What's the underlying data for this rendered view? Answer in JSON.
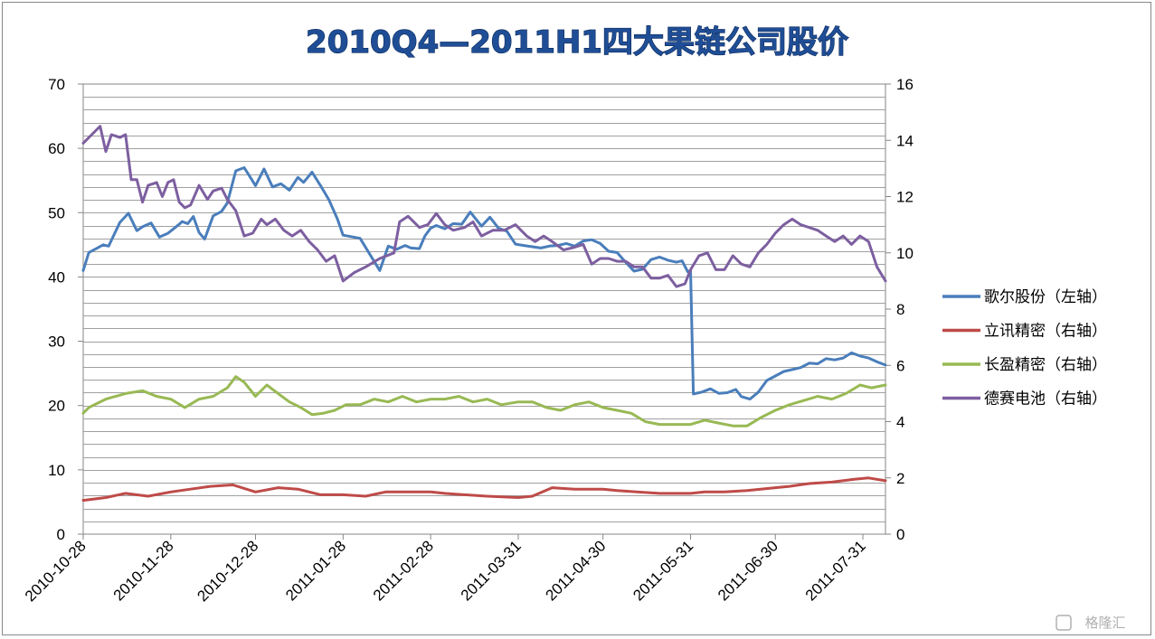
{
  "watermark": "格隆汇",
  "chart_data": {
    "type": "line",
    "title": "2010Q4—2011H1四大果链公司股价",
    "x_tick_labels": [
      "2010-10-28",
      "2010-11-28",
      "2010-12-28",
      "2011-01-28",
      "2011-02-28",
      "2011-03-31",
      "2011-04-30",
      "2011-05-31",
      "2011-06-30",
      "2011-07-31"
    ],
    "x_tick_dates": [
      "2010-10-28",
      "2010-11-28",
      "2010-12-28",
      "2011-01-28",
      "2011-02-28",
      "2011-03-31",
      "2011-04-30",
      "2011-05-31",
      "2011-06-30",
      "2011-07-31"
    ],
    "x_range": [
      "2010-10-28",
      "2011-08-08"
    ],
    "y_left": {
      "lim": [
        0,
        70
      ],
      "ticks": [
        "0",
        "10",
        "20",
        "30",
        "40",
        "50",
        "60",
        "70"
      ]
    },
    "y_right": {
      "lim": [
        0,
        16
      ],
      "ticks": [
        "0",
        "2",
        "4",
        "6",
        "8",
        "10",
        "12",
        "14",
        "16"
      ]
    },
    "grid": true,
    "legend_position": "right",
    "series": [
      {
        "name": "歌尔股份（左轴）",
        "axis": "left",
        "color": "#4a7ebb",
        "x": [
          "2010-10-28",
          "2010-10-30",
          "2010-11-02",
          "2010-11-04",
          "2010-11-06",
          "2010-11-10",
          "2010-11-13",
          "2010-11-16",
          "2010-11-18",
          "2010-11-21",
          "2010-11-24",
          "2010-11-27",
          "2010-12-01",
          "2010-12-02",
          "2010-12-04",
          "2010-12-06",
          "2010-12-08",
          "2010-12-10",
          "2010-12-13",
          "2010-12-16",
          "2010-12-18",
          "2010-12-21",
          "2010-12-24",
          "2010-12-26",
          "2010-12-28",
          "2010-12-31",
          "2011-01-03",
          "2011-01-06",
          "2011-01-09",
          "2011-01-12",
          "2011-01-14",
          "2011-01-17",
          "2011-01-20",
          "2011-01-23",
          "2011-01-26",
          "2011-01-28",
          "2011-02-03",
          "2011-02-10",
          "2011-02-13",
          "2011-02-16",
          "2011-02-19",
          "2011-02-21",
          "2011-02-24",
          "2011-02-26",
          "2011-02-28",
          "2011-03-02",
          "2011-03-05",
          "2011-03-08",
          "2011-03-11",
          "2011-03-14",
          "2011-03-18",
          "2011-03-21",
          "2011-03-24",
          "2011-03-27",
          "2011-03-30",
          "2011-04-02",
          "2011-04-05",
          "2011-04-08",
          "2011-04-11",
          "2011-04-14",
          "2011-04-17",
          "2011-04-20",
          "2011-04-23",
          "2011-04-26",
          "2011-04-29",
          "2011-05-02",
          "2011-05-05",
          "2011-05-08",
          "2011-05-11",
          "2011-05-14",
          "2011-05-17",
          "2011-05-20",
          "2011-05-23",
          "2011-05-26",
          "2011-05-28",
          "2011-05-30",
          "2011-05-31",
          "2011-06-01",
          "2011-06-04",
          "2011-06-07",
          "2011-06-10",
          "2011-06-13",
          "2011-06-16",
          "2011-06-18",
          "2011-06-21",
          "2011-06-24",
          "2011-06-27",
          "2011-06-30",
          "2011-07-03",
          "2011-07-06",
          "2011-07-09",
          "2011-07-12",
          "2011-07-15",
          "2011-07-18",
          "2011-07-21",
          "2011-07-24",
          "2011-07-27",
          "2011-07-30",
          "2011-08-02",
          "2011-08-05",
          "2011-08-08"
        ],
        "y": [
          41,
          43.8,
          44.5,
          45,
          44.8,
          48.5,
          49.9,
          47.2,
          47.8,
          48.4,
          46.2,
          46.8,
          48.2,
          48.6,
          48.3,
          49.4,
          46.9,
          45.9,
          49.5,
          50.2,
          51.5,
          56.5,
          57,
          55.6,
          54.2,
          56.8,
          54,
          54.5,
          53.5,
          55.5,
          54.7,
          56.3,
          54.2,
          52,
          49,
          46.5,
          46,
          41,
          44.8,
          44.3,
          44.9,
          44.5,
          44.4,
          46.4,
          47.6,
          48,
          47.5,
          48.3,
          48.2,
          50.1,
          47.9,
          49.3,
          47.6,
          47.1,
          45.1,
          44.9,
          44.7,
          44.5,
          44.8,
          44.9,
          45.2,
          44.8,
          45.6,
          45.8,
          45.2,
          44,
          43.8,
          42.3,
          40.9,
          41.2,
          42.7,
          43.1,
          42.6,
          42.3,
          42.5,
          40.8,
          41,
          21.8,
          22.1,
          22.6,
          21.9,
          22,
          22.5,
          21.4,
          21,
          22.1,
          23.9,
          24.6,
          25.3,
          25.6,
          25.9,
          26.6,
          26.5,
          27.3,
          27.1,
          27.4,
          28.2,
          27.7,
          27.4,
          26.8,
          26.3
        ]
      },
      {
        "name": "立讯精密（右轴）",
        "axis": "right",
        "color": "#be4b48",
        "x": [
          "2010-10-28",
          "2010-11-05",
          "2010-11-12",
          "2010-11-20",
          "2010-11-28",
          "2010-12-05",
          "2010-12-12",
          "2010-12-20",
          "2010-12-28",
          "2011-01-05",
          "2011-01-12",
          "2011-01-20",
          "2011-01-28",
          "2011-02-05",
          "2011-02-12",
          "2011-02-20",
          "2011-02-28",
          "2011-03-05",
          "2011-03-12",
          "2011-03-20",
          "2011-03-31",
          "2011-04-05",
          "2011-04-12",
          "2011-04-20",
          "2011-04-30",
          "2011-05-05",
          "2011-05-12",
          "2011-05-20",
          "2011-05-31",
          "2011-06-05",
          "2011-06-12",
          "2011-06-20",
          "2011-06-30",
          "2011-07-05",
          "2011-07-12",
          "2011-07-20",
          "2011-07-28",
          "2011-08-02",
          "2011-08-08"
        ],
        "y": [
          1.2,
          1.3,
          1.45,
          1.35,
          1.5,
          1.6,
          1.7,
          1.75,
          1.5,
          1.65,
          1.6,
          1.4,
          1.4,
          1.35,
          1.5,
          1.5,
          1.5,
          1.45,
          1.4,
          1.35,
          1.3,
          1.35,
          1.65,
          1.6,
          1.6,
          1.55,
          1.5,
          1.45,
          1.45,
          1.5,
          1.5,
          1.55,
          1.65,
          1.7,
          1.8,
          1.85,
          1.95,
          2.0,
          1.9
        ]
      },
      {
        "name": "长盈精密（右轴）",
        "axis": "right",
        "color": "#98b954",
        "x": [
          "2010-10-28",
          "2010-10-30",
          "2010-11-05",
          "2010-11-12",
          "2010-11-18",
          "2010-11-23",
          "2010-11-28",
          "2010-12-03",
          "2010-12-08",
          "2010-12-13",
          "2010-12-18",
          "2010-12-21",
          "2010-12-24",
          "2010-12-28",
          "2011-01-01",
          "2011-01-05",
          "2011-01-09",
          "2011-01-13",
          "2011-01-17",
          "2011-01-21",
          "2011-01-25",
          "2011-01-29",
          "2011-02-03",
          "2011-02-08",
          "2011-02-13",
          "2011-02-18",
          "2011-02-23",
          "2011-02-28",
          "2011-03-05",
          "2011-03-10",
          "2011-03-15",
          "2011-03-20",
          "2011-03-25",
          "2011-03-31",
          "2011-04-05",
          "2011-04-10",
          "2011-04-15",
          "2011-04-20",
          "2011-04-25",
          "2011-04-30",
          "2011-05-05",
          "2011-05-10",
          "2011-05-15",
          "2011-05-20",
          "2011-05-25",
          "2011-05-31",
          "2011-06-05",
          "2011-06-10",
          "2011-06-15",
          "2011-06-20",
          "2011-06-25",
          "2011-06-30",
          "2011-07-05",
          "2011-07-10",
          "2011-07-15",
          "2011-07-20",
          "2011-07-25",
          "2011-07-30",
          "2011-08-03",
          "2011-08-08"
        ],
        "y": [
          4.3,
          4.5,
          4.8,
          5.0,
          5.1,
          4.9,
          4.8,
          4.5,
          4.8,
          4.9,
          5.2,
          5.6,
          5.4,
          4.9,
          5.3,
          5.0,
          4.7,
          4.5,
          4.25,
          4.3,
          4.4,
          4.6,
          4.6,
          4.8,
          4.7,
          4.9,
          4.7,
          4.8,
          4.8,
          4.9,
          4.7,
          4.8,
          4.6,
          4.7,
          4.7,
          4.5,
          4.4,
          4.6,
          4.7,
          4.5,
          4.4,
          4.3,
          4.0,
          3.9,
          3.9,
          3.9,
          4.05,
          3.95,
          3.85,
          3.85,
          4.15,
          4.4,
          4.6,
          4.75,
          4.9,
          4.8,
          5.0,
          5.3,
          5.2,
          5.3
        ]
      },
      {
        "name": "德赛电池（右轴）",
        "axis": "right",
        "color": "#7d5fa0",
        "x": [
          "2010-10-28",
          "2010-10-31",
          "2010-11-03",
          "2010-11-05",
          "2010-11-07",
          "2010-11-10",
          "2010-11-12",
          "2010-11-14",
          "2010-11-16",
          "2010-11-18",
          "2010-11-20",
          "2010-11-23",
          "2010-11-25",
          "2010-11-27",
          "2010-11-29",
          "2010-12-01",
          "2010-12-03",
          "2010-12-05",
          "2010-12-08",
          "2010-12-11",
          "2010-12-13",
          "2010-12-16",
          "2010-12-18",
          "2010-12-21",
          "2010-12-24",
          "2010-12-27",
          "2010-12-30",
          "2011-01-01",
          "2011-01-04",
          "2011-01-07",
          "2011-01-10",
          "2011-01-13",
          "2011-01-16",
          "2011-01-19",
          "2011-01-22",
          "2011-01-25",
          "2011-01-28",
          "2011-02-01",
          "2011-02-05",
          "2011-02-10",
          "2011-02-15",
          "2011-02-17",
          "2011-02-20",
          "2011-02-24",
          "2011-02-27",
          "2011-03-02",
          "2011-03-05",
          "2011-03-08",
          "2011-03-12",
          "2011-03-15",
          "2011-03-18",
          "2011-03-22",
          "2011-03-26",
          "2011-03-30",
          "2011-04-03",
          "2011-04-06",
          "2011-04-09",
          "2011-04-12",
          "2011-04-16",
          "2011-04-20",
          "2011-04-23",
          "2011-04-26",
          "2011-04-29",
          "2011-05-02",
          "2011-05-05",
          "2011-05-08",
          "2011-05-11",
          "2011-05-14",
          "2011-05-17",
          "2011-05-20",
          "2011-05-23",
          "2011-05-26",
          "2011-05-29",
          "2011-05-31",
          "2011-06-03",
          "2011-06-06",
          "2011-06-09",
          "2011-06-12",
          "2011-06-15",
          "2011-06-18",
          "2011-06-21",
          "2011-06-24",
          "2011-06-27",
          "2011-06-30",
          "2011-07-03",
          "2011-07-06",
          "2011-07-09",
          "2011-07-12",
          "2011-07-15",
          "2011-07-18",
          "2011-07-21",
          "2011-07-24",
          "2011-07-27",
          "2011-07-30",
          "2011-08-02",
          "2011-08-05",
          "2011-08-08"
        ],
        "y": [
          13.9,
          14.2,
          14.5,
          13.6,
          14.2,
          14.1,
          14.2,
          12.6,
          12.6,
          11.8,
          12.4,
          12.5,
          12.0,
          12.5,
          12.6,
          11.8,
          11.6,
          11.7,
          12.4,
          11.9,
          12.2,
          12.3,
          11.9,
          11.5,
          10.6,
          10.7,
          11.2,
          11.0,
          11.2,
          10.8,
          10.6,
          10.8,
          10.4,
          10.1,
          9.7,
          9.9,
          9.0,
          9.3,
          9.5,
          9.8,
          10.0,
          11.1,
          11.3,
          10.9,
          11.0,
          11.4,
          11.0,
          10.8,
          10.9,
          11.1,
          10.6,
          10.8,
          10.8,
          11.0,
          10.6,
          10.4,
          10.6,
          10.4,
          10.1,
          10.2,
          10.3,
          9.6,
          9.8,
          9.8,
          9.7,
          9.7,
          9.5,
          9.5,
          9.1,
          9.1,
          9.2,
          8.8,
          8.9,
          9.4,
          9.9,
          10.0,
          9.4,
          9.4,
          9.9,
          9.6,
          9.5,
          10.0,
          10.3,
          10.7,
          11.0,
          11.2,
          11.0,
          10.9,
          10.8,
          10.6,
          10.4,
          10.6,
          10.3,
          10.6,
          10.4,
          9.5,
          9.0
        ]
      }
    ]
  }
}
